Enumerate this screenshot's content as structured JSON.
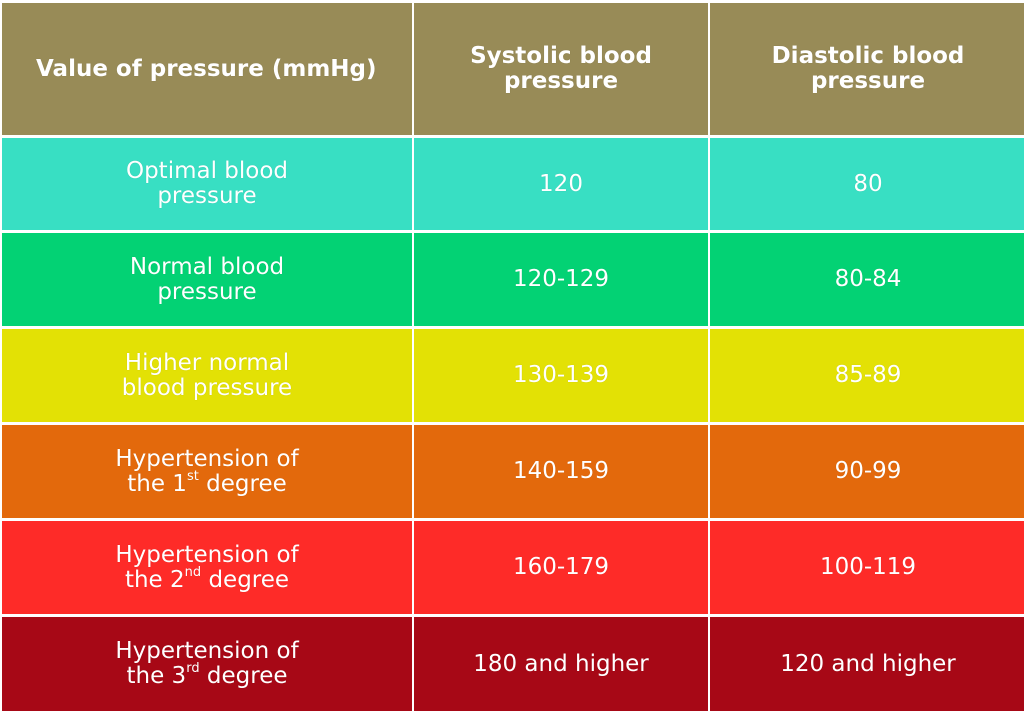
{
  "colors": {
    "header": "#988b57",
    "optimal": "#38dfc3",
    "normal": "#03d274",
    "higher_normal": "#e3e105",
    "hyp1": "#e3690c",
    "hyp2": "#fe2b28",
    "hyp3": "#a70816",
    "text": "#ffffff"
  },
  "header": {
    "col1": "Value of pressure (mmHg)",
    "col2_line1": "Systolic blood",
    "col2_line2": "pressure",
    "col3_line1": "Diastolic blood",
    "col3_line2": "pressure"
  },
  "rows": [
    {
      "label_line1": "Optimal blood",
      "label_line2": "pressure",
      "systolic": "120",
      "diastolic": "80"
    },
    {
      "label_line1": "Normal blood",
      "label_line2": "pressure",
      "systolic": "120-129",
      "diastolic": "80-84"
    },
    {
      "label_line1": "Higher normal",
      "label_line2": "blood pressure",
      "systolic": "130-139",
      "diastolic": "85-89"
    },
    {
      "label_line1": "Hypertension of",
      "label_pre": "the 1",
      "label_sup": "st",
      "label_post": " degree",
      "systolic": "140-159",
      "diastolic": "90-99"
    },
    {
      "label_line1": "Hypertension of",
      "label_pre": "the 2",
      "label_sup": "nd",
      "label_post": " degree",
      "systolic": "160-179",
      "diastolic": "100-119"
    },
    {
      "label_line1": "Hypertension of",
      "label_pre": "the 3",
      "label_sup": "rd",
      "label_post": " degree",
      "systolic": "180 and higher",
      "diastolic": "120 and higher"
    }
  ]
}
